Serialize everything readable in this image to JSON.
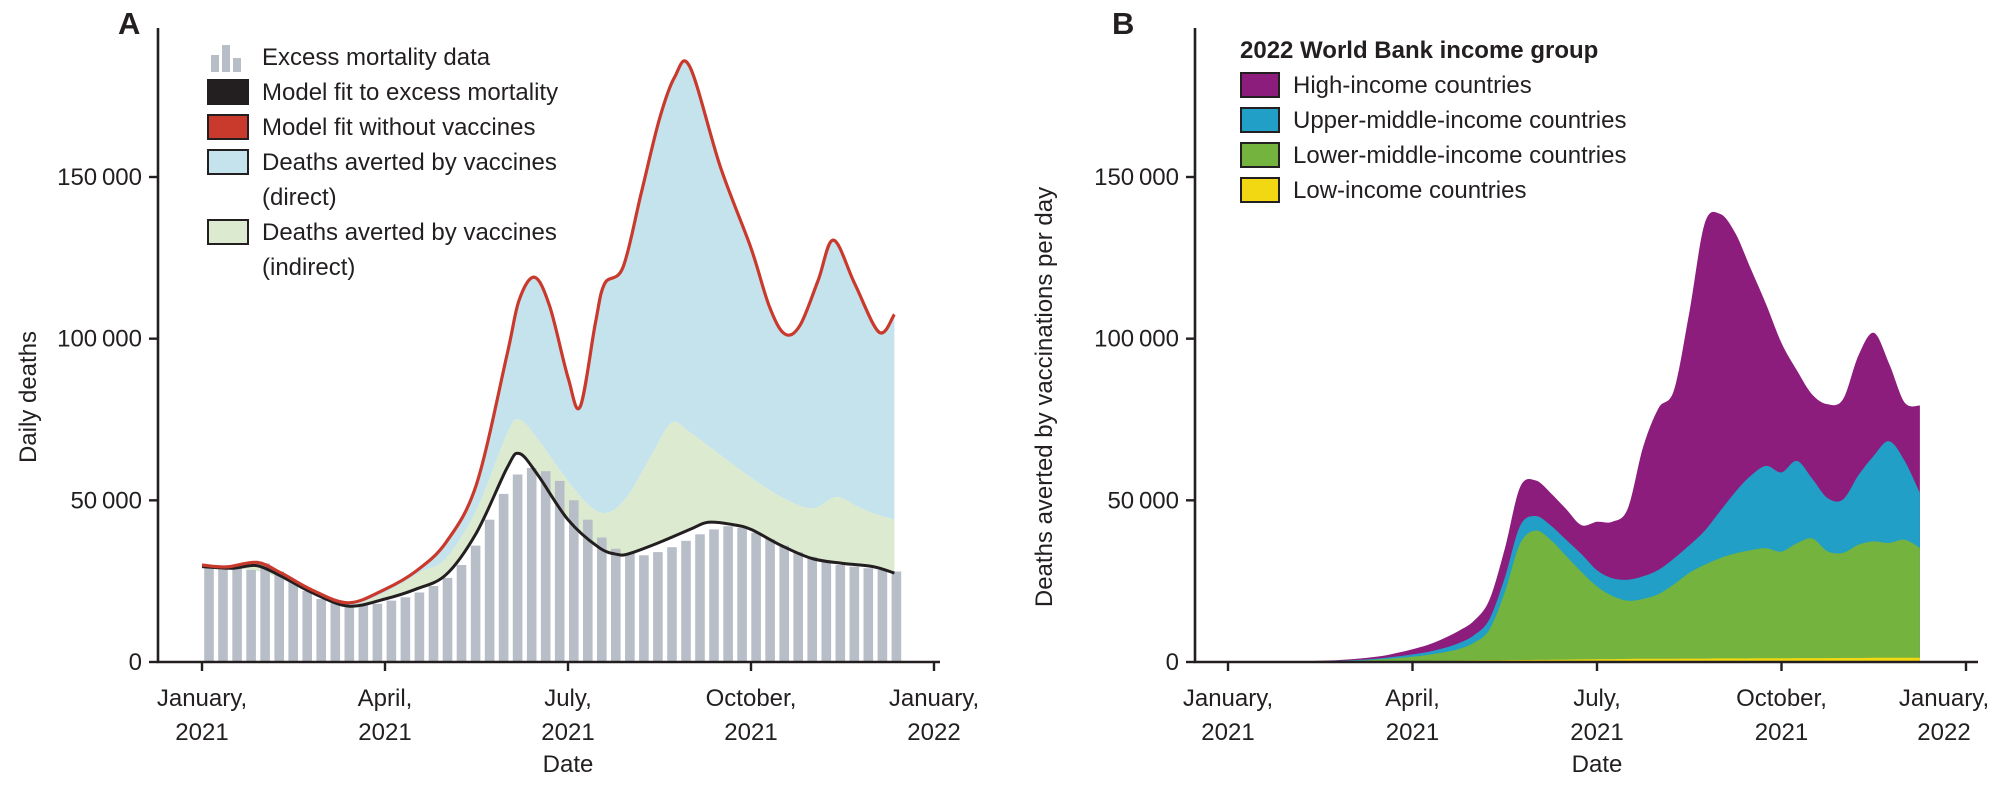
{
  "figure": {
    "colors": {
      "text": "#231f20",
      "axis": "#231f20",
      "excess_bars": "#b7bec7",
      "model_fit_line": "#231f20",
      "no_vaccines_line": "#c9392c",
      "averted_direct": "#c5e3ed",
      "averted_indirect": "#dcead0",
      "high_income": "#8c1d7c",
      "upper_middle_income": "#219fc7",
      "lower_middle_income": "#74b33e",
      "low_income": "#f2d713"
    },
    "panels": [
      {
        "letter": "A",
        "y_axis": {
          "title": "Daily deaths",
          "ticks": [
            {
              "value": 0,
              "label": "0"
            },
            {
              "value": 50000,
              "label": "50 000"
            },
            {
              "value": 100000,
              "label": "100 000"
            },
            {
              "value": 150000,
              "label": "150 000"
            }
          ]
        },
        "x_axis": {
          "title": "Date",
          "ticks": [
            {
              "month": 0,
              "line1": "January,",
              "line2": "2021"
            },
            {
              "month": 3,
              "line1": "April,",
              "line2": "2021"
            },
            {
              "month": 6,
              "line1": "July,",
              "line2": "2021"
            },
            {
              "month": 9,
              "line1": "October,",
              "line2": "2021"
            },
            {
              "month": 12,
              "line1": "January,",
              "line2": "2022"
            }
          ]
        },
        "legend": {
          "items": [
            {
              "label": "Excess mortality data",
              "swatch": "bars",
              "color_key": "excess_bars"
            },
            {
              "label": "Model fit to excess mortality",
              "swatch": "rect",
              "color_key": "model_fit_line"
            },
            {
              "label": "Model fit without vaccines",
              "swatch": "rect",
              "color_key": "no_vaccines_line"
            },
            {
              "label": "Deaths averted by vaccines (direct)",
              "swatch": "rect",
              "color_key": "averted_direct"
            },
            {
              "label": "Deaths averted by vaccines (indirect)",
              "swatch": "rect",
              "color_key": "averted_indirect"
            }
          ]
        },
        "chart_data": {
          "type": "composite",
          "x_unit": "months since 1 January 2021",
          "y_unit": "deaths per day",
          "ylim": [
            0,
            150000
          ],
          "series": {
            "excess_mortality_weekly_bars": {
              "cadence": "weekly",
              "values": [
                30000,
                29500,
                29000,
                28500,
                30500,
                28000,
                25000,
                22000,
                19500,
                18200,
                17500,
                17500,
                18000,
                19000,
                20000,
                21500,
                23500,
                26000,
                30000,
                36000,
                44000,
                52000,
                58000,
                60000,
                59000,
                56000,
                50000,
                44000,
                38500,
                35000,
                33500,
                33000,
                34000,
                35500,
                37500,
                39500,
                41000,
                42000,
                41500,
                40000,
                38000,
                36000,
                34000,
                32500,
                31000,
                30000,
                29500,
                29000,
                28500,
                28000
              ]
            },
            "model_fit": {
              "x": [
                0,
                0.5,
                0.9,
                1.3,
                1.8,
                2.4,
                3,
                3.5,
                4,
                4.5,
                5,
                5.2,
                5.5,
                6,
                6.5,
                6.8,
                7,
                7.5,
                8,
                8.3,
                8.7,
                9,
                9.5,
                10,
                10.5,
                11,
                11.35
              ],
              "y": [
                29500,
                29000,
                29800,
                26500,
                21500,
                17300,
                19500,
                22500,
                27000,
                40000,
                60000,
                64500,
                58000,
                44000,
                35500,
                33300,
                33500,
                37000,
                41000,
                43200,
                42500,
                41000,
                36000,
                32000,
                30500,
                29500,
                27500
              ]
            },
            "model_fit_without_vaccines": {
              "x": [
                0,
                0.4,
                0.9,
                1.3,
                1.8,
                2.4,
                3,
                3.5,
                4,
                4.5,
                5,
                5.2,
                5.45,
                5.7,
                6,
                6.2,
                6.45,
                6.6,
                6.9,
                7.2,
                7.5,
                7.75,
                8,
                8.5,
                9,
                9.3,
                9.55,
                9.8,
                10.1,
                10.35,
                10.7,
                11.1,
                11.35
              ],
              "y": [
                30000,
                29400,
                30800,
                27500,
                22300,
                18300,
                22500,
                28000,
                37000,
                55000,
                95000,
                112000,
                119000,
                110000,
                88000,
                79000,
                105000,
                117000,
                122000,
                145000,
                168000,
                181000,
                184000,
                153000,
                128000,
                110000,
                101500,
                104000,
                118000,
                130500,
                117000,
                102000,
                107500
              ]
            },
            "averted_indirect_upper_boundary": {
              "x": [
                0,
                0.5,
                1,
                1.5,
                2,
                2.4,
                2.8,
                3.2,
                3.6,
                4,
                4.5,
                5,
                5.2,
                5.5,
                6,
                6.4,
                6.7,
                7,
                7.4,
                7.7,
                8,
                8.5,
                9,
                9.5,
                10,
                10.4,
                10.75,
                11,
                11.35
              ],
              "y": [
                29500,
                29000,
                27800,
                24000,
                19500,
                17400,
                19800,
                23500,
                28000,
                32000,
                47000,
                70500,
                75000,
                69000,
                56000,
                47500,
                46500,
                52000,
                65000,
                74000,
                71000,
                64000,
                57000,
                51000,
                47500,
                51000,
                48000,
                46000,
                44000
              ]
            }
          },
          "bands": [
            {
              "name": "Deaths averted by vaccines (indirect)",
              "between": [
                "model_fit",
                "averted_indirect_upper_boundary"
              ],
              "color_key": "averted_indirect"
            },
            {
              "name": "Deaths averted by vaccines (direct)",
              "between": [
                "averted_indirect_upper_boundary",
                "model_fit_without_vaccines"
              ],
              "color_key": "averted_direct"
            }
          ]
        }
      },
      {
        "letter": "B",
        "y_axis": {
          "title": "Deaths averted by vaccinations per day",
          "ticks": [
            {
              "value": 0,
              "label": "0"
            },
            {
              "value": 50000,
              "label": "50 000"
            },
            {
              "value": 100000,
              "label": "100 000"
            },
            {
              "value": 150000,
              "label": "150 000"
            }
          ]
        },
        "x_axis": {
          "title": "Date",
          "ticks": [
            {
              "month": 0,
              "line1": "January,",
              "line2": "2021"
            },
            {
              "month": 3,
              "line1": "April,",
              "line2": "2021"
            },
            {
              "month": 6,
              "line1": "July,",
              "line2": "2021"
            },
            {
              "month": 9,
              "line1": "October,",
              "line2": "2021"
            },
            {
              "month": 12,
              "line1": "January,",
              "line2": "2022"
            }
          ]
        },
        "legend": {
          "title": "2022 World Bank income group",
          "items": [
            {
              "label": "High-income countries",
              "swatch": "rect",
              "color_key": "high_income"
            },
            {
              "label": "Upper-middle-income countries",
              "swatch": "rect",
              "color_key": "upper_middle_income"
            },
            {
              "label": "Lower-middle-income countries",
              "swatch": "rect",
              "color_key": "lower_middle_income"
            },
            {
              "label": "Low-income countries",
              "swatch": "rect",
              "color_key": "low_income"
            }
          ]
        },
        "chart_data": {
          "type": "area",
          "stacked": true,
          "stack_order": "bottom_to_top",
          "x_unit": "months since 1 January 2021",
          "y_unit": "deaths averted per day",
          "ylim": [
            0,
            150000
          ],
          "x_months": [
            0,
            0.25,
            0.5,
            0.75,
            1,
            1.25,
            1.5,
            1.75,
            2,
            2.25,
            2.5,
            2.75,
            3,
            3.25,
            3.5,
            3.75,
            4,
            4.25,
            4.5,
            4.75,
            5,
            5.25,
            5.5,
            5.75,
            6,
            6.25,
            6.5,
            6.75,
            7,
            7.25,
            7.5,
            7.75,
            8,
            8.25,
            8.5,
            8.75,
            9,
            9.25,
            9.5,
            9.75,
            10,
            10.25,
            10.5,
            10.75,
            11,
            11.25
          ],
          "series": [
            {
              "name": "Low-income countries",
              "color_key": "low_income",
              "values": [
                0,
                0,
                0,
                0,
                20,
                30,
                50,
                70,
                100,
                120,
                150,
                200,
                250,
                300,
                350,
                400,
                450,
                500,
                550,
                600,
                650,
                700,
                750,
                800,
                850,
                900,
                950,
                1000,
                1000,
                1000,
                1050,
                1050,
                1100,
                1100,
                1100,
                1150,
                1150,
                1200,
                1200,
                1200,
                1250,
                1250,
                1300,
                1300,
                1300,
                1300
              ]
            },
            {
              "name": "Lower-middle-income countries",
              "color_key": "lower_middle_income",
              "values": [
                0,
                0,
                0,
                20,
                40,
                70,
                120,
                200,
                300,
                450,
                700,
                1000,
                1400,
                1900,
                2600,
                3600,
                5500,
                9500,
                21000,
                36000,
                40000,
                37000,
                32000,
                27000,
                22500,
                19500,
                18000,
                18500,
                20000,
                23000,
                26500,
                29000,
                31000,
                32500,
                33500,
                34000,
                33000,
                35500,
                37000,
                33000,
                32500,
                35000,
                36000,
                35500,
                36500,
                34000
              ]
            },
            {
              "name": "Upper-middle-income countries",
              "color_key": "upper_middle_income",
              "values": [
                0,
                0,
                0,
                10,
                20,
                40,
                70,
                100,
                150,
                200,
                300,
                500,
                700,
                900,
                1300,
                1800,
                2300,
                3200,
                4500,
                5500,
                4500,
                4500,
                5000,
                5500,
                5000,
                5500,
                6500,
                7000,
                7500,
                8000,
                8500,
                10500,
                14500,
                19000,
                23000,
                25500,
                24500,
                25500,
                18500,
                16500,
                16500,
                21500,
                26500,
                31500,
                24500,
                17000
              ]
            },
            {
              "name": "High-income countries",
              "color_key": "high_income",
              "values": [
                0,
                0,
                0,
                20,
                40,
                80,
                120,
                200,
                300,
                500,
                700,
                1100,
                1600,
                2200,
                3000,
                3800,
                4500,
                6000,
                9000,
                12000,
                11000,
                10000,
                9500,
                9000,
                15000,
                17500,
                22000,
                40000,
                50000,
                52000,
                72000,
                95000,
                92000,
                80000,
                64000,
                50000,
                40000,
                28000,
                26000,
                29000,
                31000,
                37000,
                38000,
                24000,
                18000,
                27000
              ]
            }
          ]
        }
      }
    ]
  }
}
